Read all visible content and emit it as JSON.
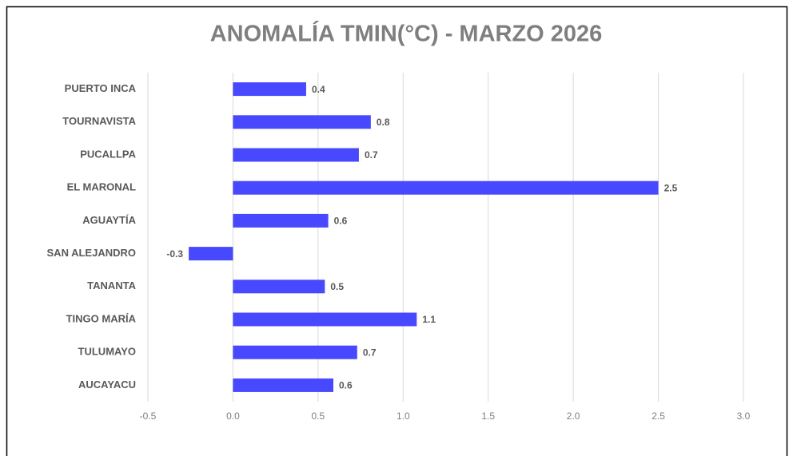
{
  "chart_data": {
    "type": "bar",
    "orientation": "horizontal",
    "title": "ANOMALÍA TMIN(°C) - MARZO 2026",
    "categories": [
      "PUERTO INCA",
      "TOURNAVISTA",
      "PUCALLPA",
      "EL MARONAL",
      "AGUAYTÍA",
      "SAN ALEJANDRO",
      "TANANTA",
      "TINGO MARÍA",
      "TULUMAYO",
      "AUCAYACU"
    ],
    "values": [
      0.43,
      0.81,
      0.74,
      2.5,
      0.56,
      -0.26,
      0.54,
      1.08,
      0.73,
      0.59
    ],
    "value_labels": [
      "0.4",
      "0.8",
      "0.7",
      "2.5",
      "0.6",
      "-0.3",
      "0.5",
      "1.1",
      "0.7",
      "0.6"
    ],
    "color": "#4848ff",
    "xlim": [
      -0.5,
      3.0
    ],
    "xticks": [
      -0.5,
      {
        "value": 0,
        "label": "0.0"
      },
      0.5,
      {
        "value": 1,
        "label": "1.0"
      },
      1.5,
      {
        "value": 2,
        "label": "2.0"
      },
      2.5,
      {
        "value": 3,
        "label": "3.0"
      }
    ],
    "grid": true
  }
}
